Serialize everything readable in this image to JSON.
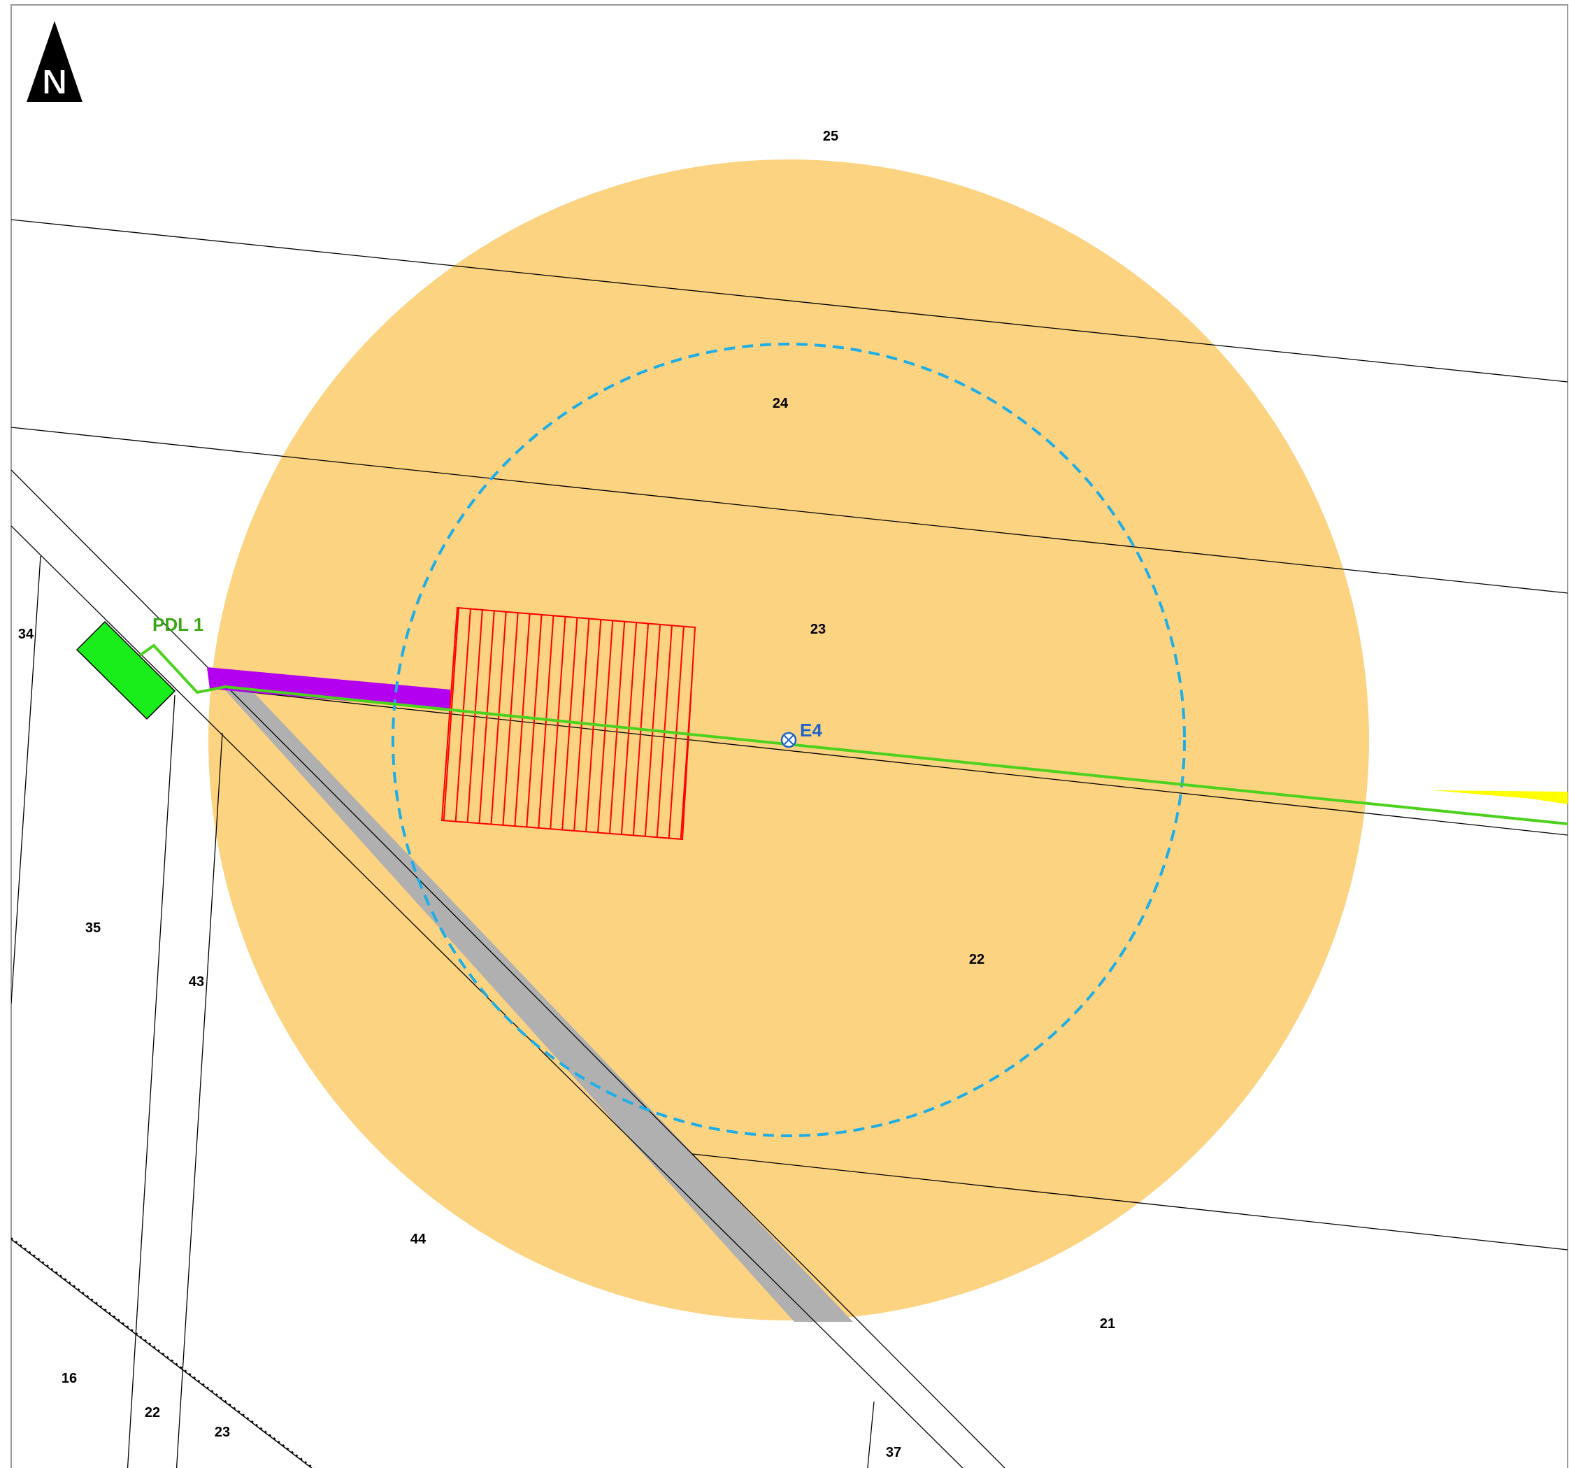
{
  "map": {
    "north_label": "N",
    "parcel_numbers": {
      "p25": "25",
      "p24": "24",
      "p23": "23",
      "p22": "22",
      "p21": "21",
      "p34": "34",
      "p35": "35",
      "p43": "43",
      "p44": "44",
      "p16": "16",
      "p22b": "22",
      "p23b": "23",
      "p37": "37"
    },
    "features": {
      "pdl_label": "PDL 1",
      "well_label": "E4"
    },
    "colors": {
      "buffer_fill": "#fcd381",
      "inner_buffer_stroke": "#1eaee6",
      "pipeline": "#4cd21e",
      "pdl_label": "#3aa617",
      "pad": "#1aee1a",
      "access_road": "#b400f0",
      "hatched_area": "#ff0000",
      "road": "#b0b0b0",
      "well_symbol": "#1e64c8",
      "yellow_feature": "#ffff00"
    },
    "icons": {
      "north_arrow": "north-arrow-icon",
      "well": "well-symbol-icon"
    }
  }
}
